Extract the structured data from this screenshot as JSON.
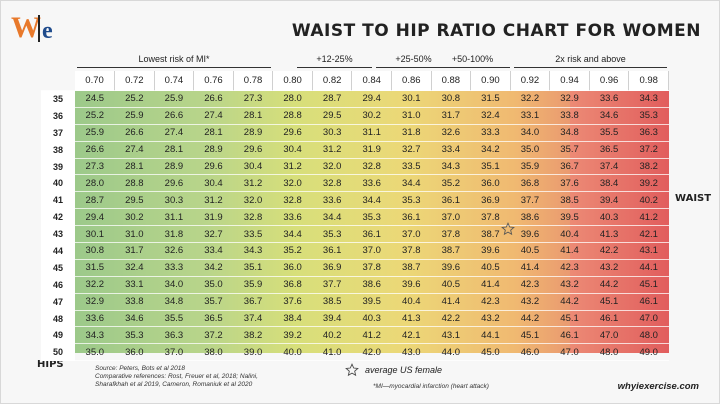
{
  "logo": {
    "left": "W",
    "right": "e"
  },
  "title": "Waist to hip ratio chart for women",
  "groups": [
    "Lowest risk of MI*",
    "+12-25%",
    "+25-50%",
    "+50-100%",
    "2x risk and above"
  ],
  "axis": {
    "waist_label": "WAIST",
    "hips_label": "HIPS"
  },
  "legend": {
    "star_label": "average US female",
    "star_icon": "star-outline-icon"
  },
  "source": {
    "line1": "Source:  Peters, Bots et al 2018",
    "line2": "Comparative references: Rost, Freuer et al, 2018; Nalini,",
    "line3": "Sharafkhah et al 2019, Cameron, Romaniuk et al 2020"
  },
  "footnote": "*MI—myocardial infarction (heart attack)",
  "site": "whyiexercise.com",
  "colors": {
    "low": "#9cc98a",
    "mid": "#ecd877",
    "high": "#f0b971",
    "vhigh": "#e15d5d"
  },
  "chart_data": {
    "type": "table",
    "title": "Waist to hip ratio chart for women",
    "columns": [
      "0.70",
      "0.72",
      "0.74",
      "0.76",
      "0.78",
      "0.80",
      "0.82",
      "0.84",
      "0.86",
      "0.88",
      "0.90",
      "0.92",
      "0.94",
      "0.96",
      "0.98"
    ],
    "rows": [
      {
        "hips": "35",
        "values": [
          "24.5",
          "25.2",
          "25.9",
          "26.6",
          "27.3",
          "28.0",
          "28.7",
          "29.4",
          "30.1",
          "30.8",
          "31.5",
          "32.2",
          "32.9",
          "33.6",
          "34.3"
        ]
      },
      {
        "hips": "36",
        "values": [
          "25.2",
          "25.9",
          "26.6",
          "27.4",
          "28.1",
          "28.8",
          "29.5",
          "30.2",
          "31.0",
          "31.7",
          "32.4",
          "33.1",
          "33.8",
          "34.6",
          "35.3"
        ]
      },
      {
        "hips": "37",
        "values": [
          "25.9",
          "26.6",
          "27.4",
          "28.1",
          "28.9",
          "29.6",
          "30.3",
          "31.1",
          "31.8",
          "32.6",
          "33.3",
          "34.0",
          "34.8",
          "35.5",
          "36.3"
        ]
      },
      {
        "hips": "38",
        "values": [
          "26.6",
          "27.4",
          "28.1",
          "28.9",
          "29.6",
          "30.4",
          "31.2",
          "31.9",
          "32.7",
          "33.4",
          "34.2",
          "35.0",
          "35.7",
          "36.5",
          "37.2"
        ]
      },
      {
        "hips": "39",
        "values": [
          "27.3",
          "28.1",
          "28.9",
          "29.6",
          "30.4",
          "31.2",
          "32.0",
          "32.8",
          "33.5",
          "34.3",
          "35.1",
          "35.9",
          "36.7",
          "37.4",
          "38.2"
        ]
      },
      {
        "hips": "40",
        "values": [
          "28.0",
          "28.8",
          "29.6",
          "30.4",
          "31.2",
          "32.0",
          "32.8",
          "33.6",
          "34.4",
          "35.2",
          "36.0",
          "36.8",
          "37.6",
          "38.4",
          "39.2"
        ]
      },
      {
        "hips": "41",
        "values": [
          "28.7",
          "29.5",
          "30.3",
          "31.2",
          "32.0",
          "32.8",
          "33.6",
          "34.4",
          "35.3",
          "36.1",
          "36.9",
          "37.7",
          "38.5",
          "39.4",
          "40.2"
        ]
      },
      {
        "hips": "42",
        "values": [
          "29.4",
          "30.2",
          "31.1",
          "31.9",
          "32.8",
          "33.6",
          "34.4",
          "35.3",
          "36.1",
          "37.0",
          "37.8",
          "38.6",
          "39.5",
          "40.3",
          "41.2"
        ]
      },
      {
        "hips": "43",
        "values": [
          "30.1",
          "31.0",
          "31.8",
          "32.7",
          "33.5",
          "34.4",
          "35.3",
          "36.1",
          "37.0",
          "37.8",
          "38.7",
          "39.6",
          "40.4",
          "41.3",
          "42.1"
        ]
      },
      {
        "hips": "44",
        "values": [
          "30.8",
          "31.7",
          "32.6",
          "33.4",
          "34.3",
          "35.2",
          "36.1",
          "37.0",
          "37.8",
          "38.7",
          "39.6",
          "40.5",
          "41.4",
          "42.2",
          "43.1"
        ]
      },
      {
        "hips": "45",
        "values": [
          "31.5",
          "32.4",
          "33.3",
          "34.2",
          "35.1",
          "36.0",
          "36.9",
          "37.8",
          "38.7",
          "39.6",
          "40.5",
          "41.4",
          "42.3",
          "43.2",
          "44.1"
        ]
      },
      {
        "hips": "46",
        "values": [
          "32.2",
          "33.1",
          "34.0",
          "35.0",
          "35.9",
          "36.8",
          "37.7",
          "38.6",
          "39.6",
          "40.5",
          "41.4",
          "42.3",
          "43.2",
          "44.2",
          "45.1"
        ]
      },
      {
        "hips": "47",
        "values": [
          "32.9",
          "33.8",
          "34.8",
          "35.7",
          "36.7",
          "37.6",
          "38.5",
          "39.5",
          "40.4",
          "41.4",
          "42.3",
          "43.2",
          "44.2",
          "45.1",
          "46.1"
        ]
      },
      {
        "hips": "48",
        "values": [
          "33.6",
          "34.6",
          "35.5",
          "36.5",
          "37.4",
          "38.4",
          "39.4",
          "40.3",
          "41.3",
          "42.2",
          "43.2",
          "44.2",
          "45.1",
          "46.1",
          "47.0"
        ]
      },
      {
        "hips": "49",
        "values": [
          "34.3",
          "35.3",
          "36.3",
          "37.2",
          "38.2",
          "39.2",
          "40.2",
          "41.2",
          "42.1",
          "43.1",
          "44.1",
          "45.1",
          "46.1",
          "47.0",
          "48.0"
        ]
      },
      {
        "hips": "50",
        "values": [
          "35.0",
          "36.0",
          "37.0",
          "38.0",
          "39.0",
          "40.0",
          "41.0",
          "42.0",
          "43.0",
          "44.0",
          "45.0",
          "46.0",
          "47.0",
          "48.0",
          "49.0"
        ]
      }
    ],
    "groups": [
      {
        "label": "Lowest risk of MI*",
        "columns": [
          "0.70",
          "0.72",
          "0.74",
          "0.76",
          "0.78"
        ]
      },
      {
        "label": "+12-25%",
        "columns": [
          "0.80",
          "0.82"
        ]
      },
      {
        "label": "+25-50%",
        "columns": [
          "0.84",
          "0.86"
        ]
      },
      {
        "label": "+50-100%",
        "columns": [
          "0.88",
          "0.90"
        ]
      },
      {
        "label": "2x risk and above",
        "columns": [
          "0.92",
          "0.94",
          "0.96",
          "0.98"
        ]
      }
    ],
    "row_axis_label": "HIPS",
    "col_axis_label": "WAIST",
    "annotation": {
      "label": "average US female",
      "hips": "43",
      "ratio": "0.90"
    }
  }
}
